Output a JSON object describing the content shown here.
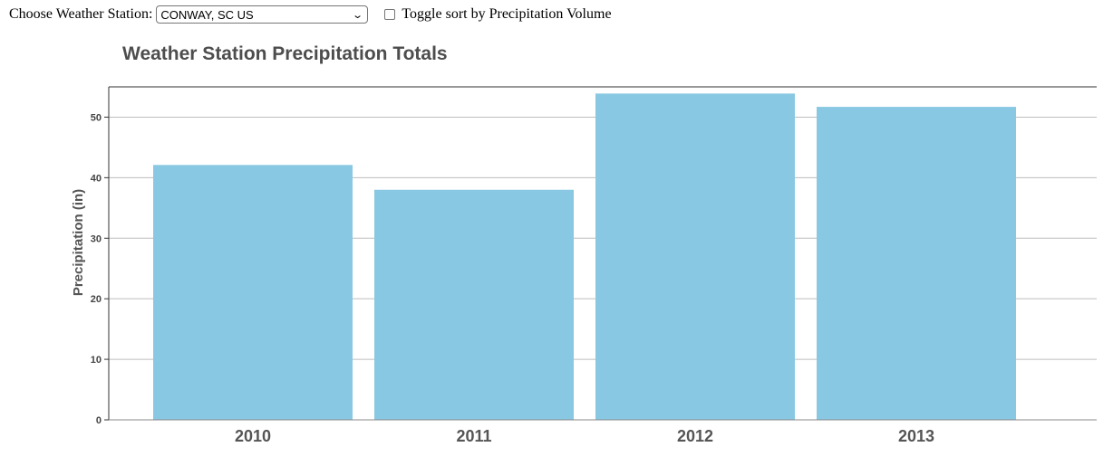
{
  "controls": {
    "station_label": "Choose Weather Station:",
    "station_selected": "CONWAY, SC US",
    "sort_label": "Toggle sort by Precipitation Volume",
    "sort_checked": false
  },
  "chart_data": {
    "type": "bar",
    "title": "Weather Station Precipitation Totals",
    "ylabel": "Precipitation (in)",
    "xlabel": "",
    "categories": [
      "2010",
      "2011",
      "2012",
      "2013"
    ],
    "values": [
      42.1,
      38.0,
      53.9,
      51.7
    ],
    "ylim": [
      0,
      55
    ],
    "yticks": [
      0,
      10,
      20,
      30,
      40,
      50
    ],
    "grid": true,
    "bar_color": "#89c8e2",
    "title_color": "#4d4d4d"
  }
}
